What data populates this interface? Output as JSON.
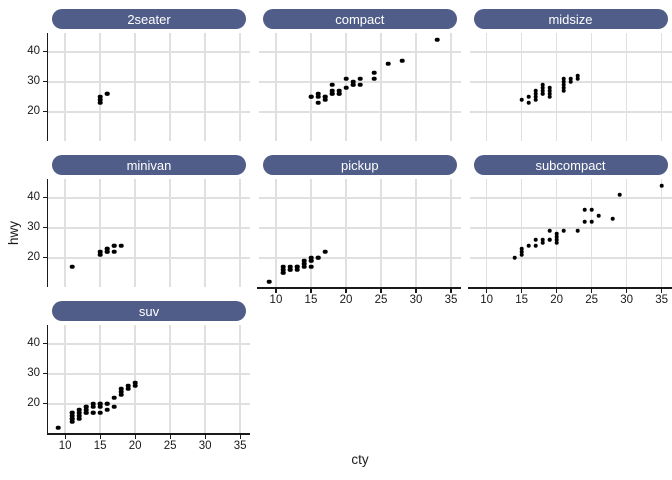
{
  "figure": {
    "background": "#ffffff",
    "strip_fill": "#4f5d88",
    "strip_text_color": "#ffffff",
    "grid_color": "#e0e0e0",
    "axis_color": "#1a1a1a",
    "point_color": "#000000"
  },
  "chart_data": {
    "type": "scatter",
    "title": "",
    "faceted_by": "class",
    "xlabel": "cty",
    "ylabel": "hwy",
    "x_ticks": [
      10,
      15,
      20,
      25,
      30,
      35
    ],
    "y_ticks": [
      20,
      30,
      40
    ],
    "x_domain": [
      7.55,
      36.4
    ],
    "y_domain": [
      10.3,
      46.3
    ],
    "grid": true,
    "legend_position": "none",
    "facets": [
      {
        "label": "2seater",
        "points": [
          [
            15,
            23
          ],
          [
            15,
            24
          ],
          [
            15,
            25
          ],
          [
            16,
            26
          ],
          [
            16,
            26
          ]
        ]
      },
      {
        "label": "compact",
        "points": [
          [
            15,
            25
          ],
          [
            15,
            25
          ],
          [
            16,
            23
          ],
          [
            16,
            25
          ],
          [
            16,
            26
          ],
          [
            17,
            24
          ],
          [
            17,
            25
          ],
          [
            17,
            25
          ],
          [
            18,
            26
          ],
          [
            18,
            26
          ],
          [
            18,
            27
          ],
          [
            18,
            29
          ],
          [
            19,
            26
          ],
          [
            19,
            26
          ],
          [
            19,
            27
          ],
          [
            20,
            28
          ],
          [
            20,
            31
          ],
          [
            21,
            29
          ],
          [
            21,
            29
          ],
          [
            21,
            30
          ],
          [
            22,
            29
          ],
          [
            22,
            31
          ],
          [
            24,
            31
          ],
          [
            24,
            33
          ],
          [
            26,
            36
          ],
          [
            28,
            37
          ],
          [
            33,
            44
          ]
        ]
      },
      {
        "label": "midsize",
        "points": [
          [
            15,
            24
          ],
          [
            16,
            23
          ],
          [
            16,
            25
          ],
          [
            17,
            24
          ],
          [
            17,
            25
          ],
          [
            17,
            26
          ],
          [
            17,
            27
          ],
          [
            18,
            26
          ],
          [
            18,
            26
          ],
          [
            18,
            27
          ],
          [
            18,
            28
          ],
          [
            18,
            29
          ],
          [
            19,
            25
          ],
          [
            19,
            26
          ],
          [
            19,
            27
          ],
          [
            19,
            28
          ],
          [
            21,
            27
          ],
          [
            21,
            28
          ],
          [
            21,
            29
          ],
          [
            21,
            30
          ],
          [
            21,
            31
          ],
          [
            22,
            30
          ],
          [
            22,
            31
          ],
          [
            23,
            31
          ],
          [
            23,
            32
          ]
        ]
      },
      {
        "label": "minivan",
        "points": [
          [
            11,
            17
          ],
          [
            15,
            21
          ],
          [
            15,
            22
          ],
          [
            16,
            22
          ],
          [
            16,
            22
          ],
          [
            16,
            23
          ],
          [
            16,
            23
          ],
          [
            17,
            22
          ],
          [
            17,
            24
          ],
          [
            17,
            24
          ],
          [
            18,
            24
          ]
        ]
      },
      {
        "label": "pickup",
        "points": [
          [
            9,
            12
          ],
          [
            11,
            15
          ],
          [
            11,
            15
          ],
          [
            11,
            16
          ],
          [
            11,
            17
          ],
          [
            12,
            16
          ],
          [
            12,
            16
          ],
          [
            12,
            17
          ],
          [
            13,
            16
          ],
          [
            13,
            17
          ],
          [
            13,
            17
          ],
          [
            14,
            17
          ],
          [
            14,
            18
          ],
          [
            14,
            19
          ],
          [
            15,
            17
          ],
          [
            15,
            19
          ],
          [
            15,
            19
          ],
          [
            15,
            20
          ],
          [
            16,
            20
          ],
          [
            16,
            20
          ],
          [
            17,
            22
          ]
        ]
      },
      {
        "label": "subcompact",
        "points": [
          [
            14,
            20
          ],
          [
            15,
            21
          ],
          [
            15,
            22
          ],
          [
            15,
            23
          ],
          [
            16,
            24
          ],
          [
            17,
            24
          ],
          [
            17,
            26
          ],
          [
            18,
            25
          ],
          [
            18,
            26
          ],
          [
            19,
            26
          ],
          [
            19,
            26
          ],
          [
            19,
            29
          ],
          [
            20,
            25
          ],
          [
            20,
            26
          ],
          [
            20,
            27
          ],
          [
            20,
            28
          ],
          [
            21,
            29
          ],
          [
            23,
            29
          ],
          [
            24,
            32
          ],
          [
            24,
            36
          ],
          [
            25,
            32
          ],
          [
            25,
            36
          ],
          [
            26,
            34
          ],
          [
            28,
            33
          ],
          [
            29,
            41
          ],
          [
            35,
            44
          ]
        ]
      },
      {
        "label": "suv",
        "points": [
          [
            9,
            12
          ],
          [
            11,
            14
          ],
          [
            11,
            15
          ],
          [
            11,
            15
          ],
          [
            11,
            16
          ],
          [
            11,
            17
          ],
          [
            11,
            17
          ],
          [
            12,
            15
          ],
          [
            12,
            16
          ],
          [
            12,
            17
          ],
          [
            12,
            18
          ],
          [
            13,
            17
          ],
          [
            13,
            17
          ],
          [
            13,
            18
          ],
          [
            13,
            19
          ],
          [
            13,
            19
          ],
          [
            14,
            17
          ],
          [
            14,
            17
          ],
          [
            14,
            19
          ],
          [
            14,
            20
          ],
          [
            15,
            17
          ],
          [
            15,
            19
          ],
          [
            15,
            20
          ],
          [
            15,
            20
          ],
          [
            16,
            18
          ],
          [
            16,
            20
          ],
          [
            16,
            20
          ],
          [
            17,
            19
          ],
          [
            17,
            22
          ],
          [
            18,
            23
          ],
          [
            18,
            24
          ],
          [
            18,
            25
          ],
          [
            19,
            25
          ],
          [
            19,
            26
          ],
          [
            20,
            26
          ],
          [
            20,
            27
          ]
        ]
      }
    ]
  }
}
